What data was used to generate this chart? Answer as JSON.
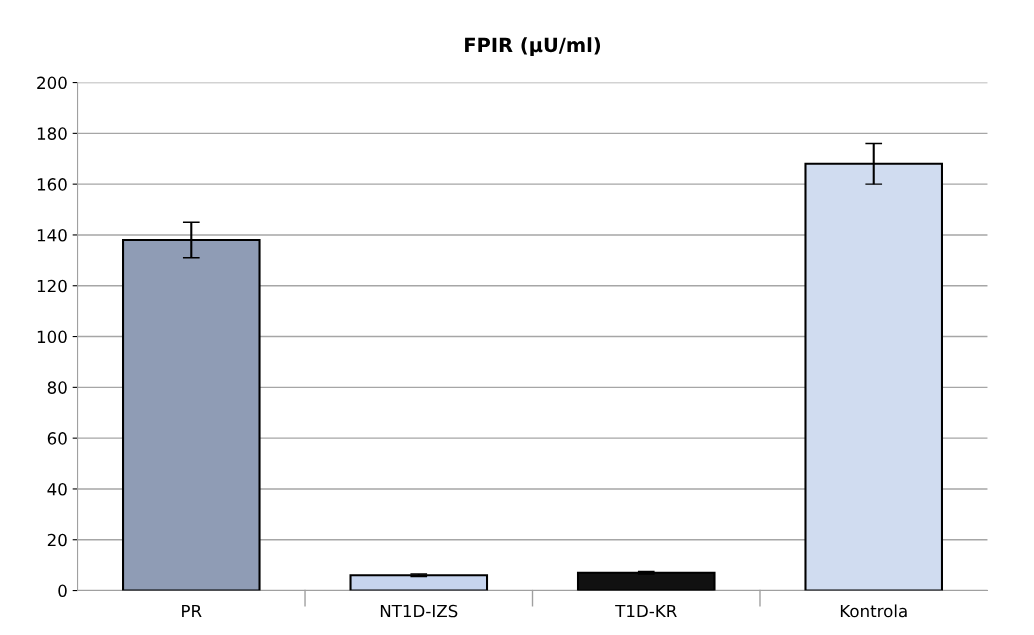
{
  "chart_data": {
    "type": "bar",
    "title": "FPIR (µU/ml)",
    "categories": [
      "PR",
      "NT1D-IZS",
      "T1D-KR",
      "Kontrola"
    ],
    "values": [
      138,
      6,
      7,
      168
    ],
    "errors": [
      7,
      0.5,
      0.5,
      8
    ],
    "colors": [
      "#8f9cb5",
      "#c6d4ee",
      "#111111",
      "#d0dcf0"
    ],
    "ylim": [
      0,
      200
    ],
    "yticks": [
      0,
      20,
      40,
      60,
      80,
      100,
      120,
      140,
      160,
      180,
      200
    ],
    "grid": "y"
  }
}
